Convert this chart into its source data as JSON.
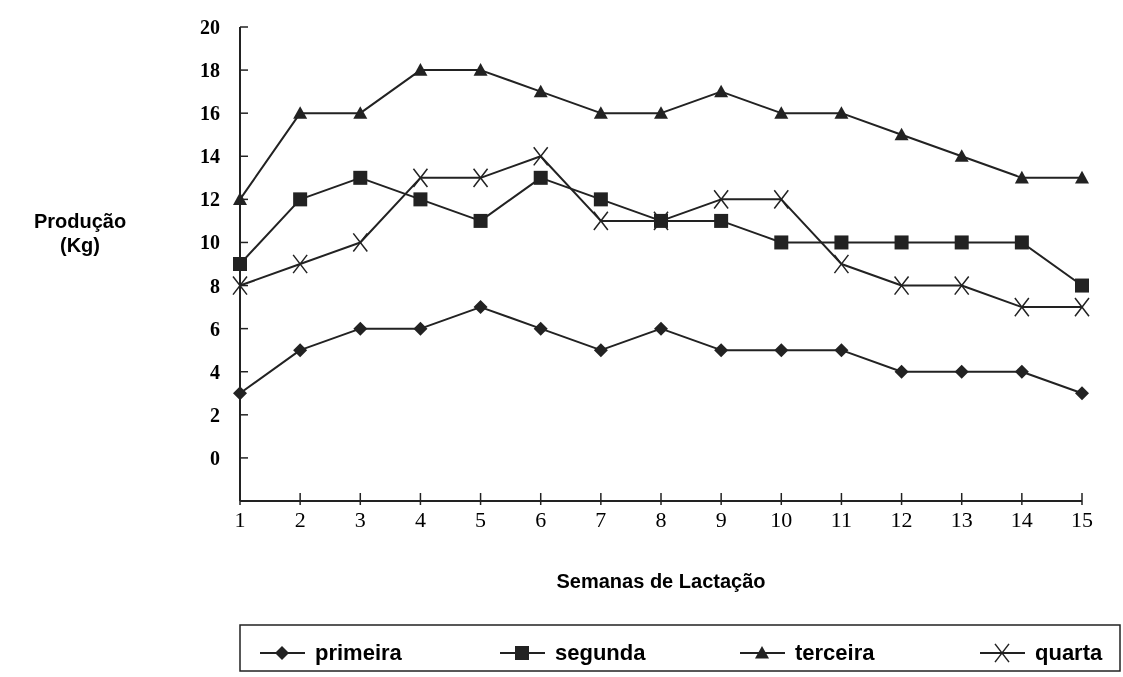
{
  "chart_data": {
    "type": "line",
    "xlabel": "Semanas de Lactação",
    "ylabel": "Produção\n(Kg)",
    "x": [
      1,
      2,
      3,
      4,
      5,
      6,
      7,
      8,
      9,
      10,
      11,
      12,
      13,
      14,
      15
    ],
    "xlim": [
      1,
      15
    ],
    "xticks": [
      1,
      2,
      3,
      4,
      5,
      6,
      7,
      8,
      9,
      10,
      11,
      12,
      13,
      14,
      15
    ],
    "ylim": [
      -2,
      20
    ],
    "yticks": [
      {
        "value": -2,
        "label": null
      },
      0,
      2,
      4,
      6,
      8,
      10,
      12,
      14,
      16,
      18,
      20
    ],
    "legend": "bottom",
    "grid": false,
    "series": [
      {
        "name": "primeira",
        "color": "#222222",
        "marker": "diamond",
        "values": [
          3,
          5,
          6,
          6,
          7,
          6,
          5,
          6,
          5,
          5,
          5,
          4,
          4,
          4,
          3
        ]
      },
      {
        "name": "segunda",
        "color": "#222222",
        "marker": "square",
        "values": [
          9,
          12,
          13,
          12,
          11,
          13,
          12,
          11,
          11,
          10,
          10,
          10,
          10,
          10,
          8
        ]
      },
      {
        "name": "terceira",
        "color": "#222222",
        "marker": "triangle",
        "values": [
          12,
          16,
          16,
          18,
          18,
          17,
          16,
          16,
          17,
          16,
          16,
          15,
          14,
          13,
          13
        ]
      },
      {
        "name": "quarta",
        "color": "#222222",
        "marker": "cross",
        "values": [
          8,
          9,
          10,
          13,
          13,
          14,
          11,
          11,
          12,
          12,
          9,
          8,
          8,
          7,
          7
        ]
      }
    ]
  }
}
